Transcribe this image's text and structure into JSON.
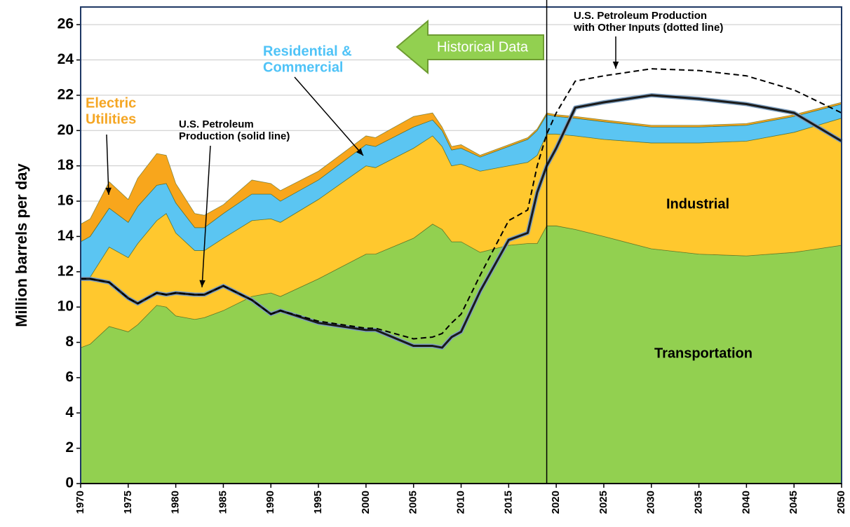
{
  "chart_data": {
    "type": "stacked_area",
    "y_label": "Million barrels per day",
    "x": [
      1970,
      1971,
      1973,
      1975,
      1976,
      1978,
      1979,
      1980,
      1982,
      1983,
      1985,
      1988,
      1990,
      1991,
      1995,
      2000,
      2001,
      2005,
      2007,
      2008,
      2009,
      2010,
      2012,
      2015,
      2017,
      2018,
      2019,
      2020,
      2022,
      2025,
      2030,
      2035,
      2040,
      2045,
      2050
    ],
    "series": [
      {
        "name": "Transportation",
        "color": "#92d050",
        "values": [
          7.7,
          7.9,
          8.9,
          8.6,
          9.0,
          10.1,
          10.0,
          9.5,
          9.3,
          9.4,
          9.8,
          10.6,
          10.8,
          10.6,
          11.6,
          13.0,
          13.0,
          13.9,
          14.7,
          14.4,
          13.7,
          13.7,
          13.1,
          13.5,
          13.6,
          13.6,
          14.6,
          14.6,
          14.4,
          14.0,
          13.3,
          13.0,
          12.9,
          13.1,
          13.5
        ]
      },
      {
        "name": "Industrial",
        "color": "#ffc82e",
        "values": [
          3.9,
          3.8,
          4.5,
          4.2,
          4.6,
          4.8,
          5.3,
          4.7,
          3.9,
          3.8,
          4.1,
          4.3,
          4.2,
          4.2,
          4.5,
          5.0,
          4.9,
          5.1,
          5.0,
          4.7,
          4.3,
          4.4,
          4.6,
          4.5,
          4.6,
          5.0,
          5.2,
          5.2,
          5.3,
          5.5,
          6.0,
          6.3,
          6.5,
          6.8,
          7.2
        ]
      },
      {
        "name": "Residential & Commercial",
        "color": "#5bc5f2",
        "values": [
          2.1,
          2.3,
          2.2,
          2.0,
          2.1,
          2.0,
          1.7,
          1.7,
          1.3,
          1.3,
          1.4,
          1.5,
          1.4,
          1.2,
          1.1,
          1.2,
          1.2,
          1.2,
          0.9,
          0.9,
          0.9,
          0.9,
          0.8,
          1.1,
          1.3,
          1.4,
          1.1,
          1.0,
          1.0,
          1.0,
          0.9,
          0.9,
          0.9,
          0.9,
          0.8
        ]
      },
      {
        "name": "Electric Utilities",
        "color": "#f8a61c",
        "values": [
          1.0,
          1.0,
          1.5,
          1.3,
          1.6,
          1.8,
          1.6,
          1.1,
          0.8,
          0.7,
          0.5,
          0.8,
          0.6,
          0.6,
          0.5,
          0.5,
          0.5,
          0.6,
          0.4,
          0.2,
          0.2,
          0.2,
          0.1,
          0.1,
          0.1,
          0.1,
          0.1,
          0.1,
          0.1,
          0.1,
          0.1,
          0.1,
          0.1,
          0.1,
          0.1
        ]
      }
    ],
    "lines": [
      {
        "name": "U.S. Petroleum Production",
        "color": "#1a1a1a",
        "style": "solid",
        "values": [
          11.6,
          11.6,
          11.4,
          10.5,
          10.2,
          10.8,
          10.7,
          10.8,
          10.7,
          10.7,
          11.2,
          10.4,
          9.6,
          9.8,
          9.1,
          8.7,
          8.7,
          7.8,
          7.8,
          7.7,
          8.3,
          8.6,
          10.9,
          13.8,
          14.2,
          16.5,
          18.0,
          19.0,
          21.3,
          21.6,
          22.0,
          21.8,
          21.5,
          21.0,
          19.4
        ]
      },
      {
        "name": "U.S. Petroleum Production with Other Inputs",
        "color": "#000000",
        "style": "dashed",
        "values": [
          11.6,
          11.6,
          11.4,
          10.5,
          10.2,
          10.8,
          10.7,
          10.8,
          10.7,
          10.7,
          11.2,
          10.4,
          9.6,
          9.8,
          9.2,
          8.8,
          8.8,
          8.2,
          8.3,
          8.5,
          9.1,
          9.6,
          11.8,
          14.9,
          15.5,
          18.0,
          19.8,
          21.0,
          22.8,
          23.1,
          23.5,
          23.4,
          23.1,
          22.3,
          21.0
        ]
      }
    ],
    "divider_x": 2019,
    "historical_label": "Historical Data",
    "annotations": [
      {
        "lines": [
          "Electric",
          "Utilities"
        ],
        "color": "#f5a623"
      },
      {
        "lines": [
          "Residential &",
          "Commercial"
        ],
        "color": "#4fc3f7"
      },
      {
        "lines": [
          "U.S. Petroleum",
          "Production (solid line)"
        ],
        "color": "#000000"
      },
      {
        "lines": [
          "U.S. Petroleum Production",
          "with Other Inputs (dotted line)"
        ],
        "color": "#000000"
      },
      {
        "lines": [
          "Industrial"
        ],
        "color": "#000000"
      },
      {
        "lines": [
          "Transportation"
        ],
        "color": "#000000"
      }
    ],
    "xlim": [
      1970,
      2050
    ],
    "xticks": [
      1970,
      1975,
      1980,
      1985,
      1990,
      1995,
      2000,
      2005,
      2010,
      2015,
      2020,
      2025,
      2030,
      2035,
      2040,
      2045,
      2050
    ],
    "ylim": [
      0,
      27
    ],
    "yticks": [
      0,
      2,
      4,
      6,
      8,
      10,
      12,
      14,
      16,
      18,
      20,
      22,
      24,
      26
    ],
    "grid": true
  }
}
